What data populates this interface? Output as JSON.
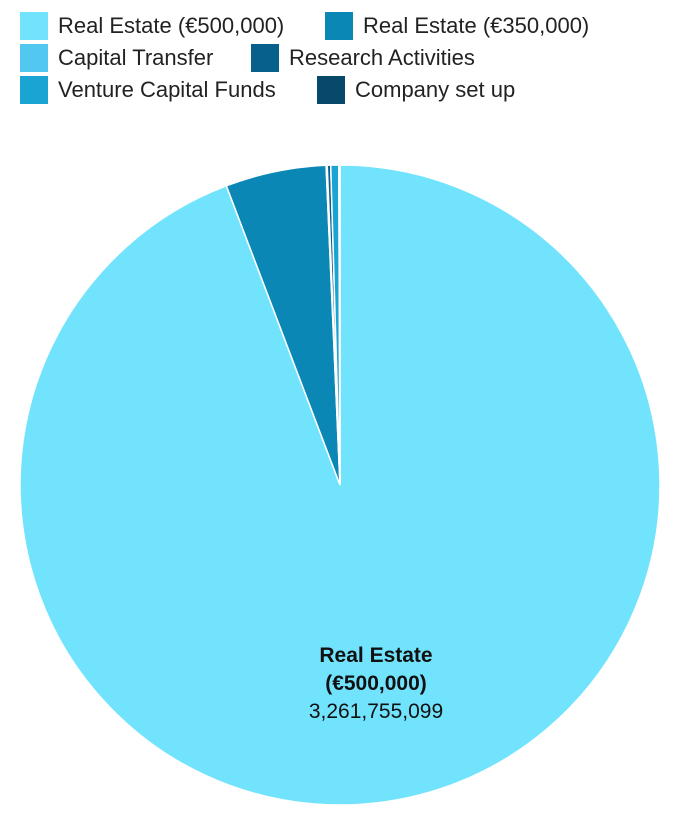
{
  "chart_data": {
    "type": "pie",
    "title": "",
    "series": [
      {
        "name": "Real Estate (€500,000)",
        "color": "#72e3fd",
        "value": 3261755099
      },
      {
        "name": "Real Estate (€350,000)",
        "color": "#0b87b5",
        "value": 176000000
      },
      {
        "name": "Capital Transfer",
        "color": "#52c7f0",
        "value": 2000000
      },
      {
        "name": "Research Activities",
        "color": "#075f8c",
        "value": 6000000
      },
      {
        "name": "Venture Capital Funds",
        "color": "#1aa4d3",
        "value": 14000000
      },
      {
        "name": "Company set up",
        "color": "#08486b",
        "value": 2000000
      }
    ],
    "data_label": {
      "series_index": 0,
      "line1": "Real Estate",
      "line2": "(€500,000)",
      "value_text": "3,261,755,099"
    },
    "legend_position": "top-left"
  }
}
